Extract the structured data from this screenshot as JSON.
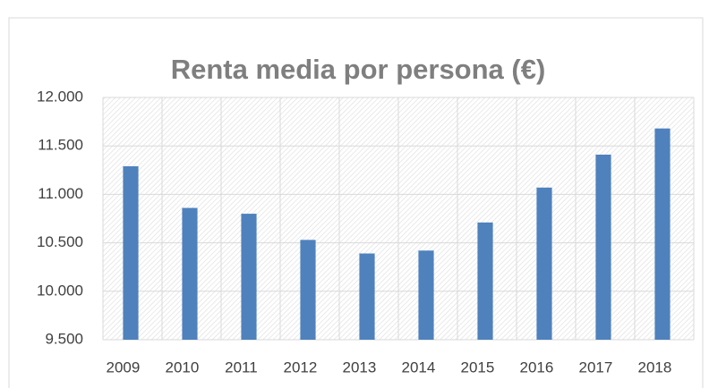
{
  "chart_data": {
    "type": "bar",
    "title": "Renta media por persona (€)",
    "categories": [
      "2009",
      "2010",
      "2011",
      "2012",
      "2013",
      "2014",
      "2015",
      "2016",
      "2017",
      "2018"
    ],
    "values": [
      11290,
      10860,
      10800,
      10530,
      10390,
      10420,
      10710,
      11070,
      11410,
      11680
    ],
    "color": "#4f81bd",
    "ylim": [
      9500,
      12000
    ],
    "yticks": [
      {
        "value": 9500,
        "label": "9.500"
      },
      {
        "value": 10000,
        "label": "10.000"
      },
      {
        "value": 10500,
        "label": "10.500"
      },
      {
        "value": 11000,
        "label": "11.000"
      },
      {
        "value": 11500,
        "label": "11.500"
      },
      {
        "value": 12000,
        "label": "12.000"
      }
    ],
    "grid": true
  }
}
